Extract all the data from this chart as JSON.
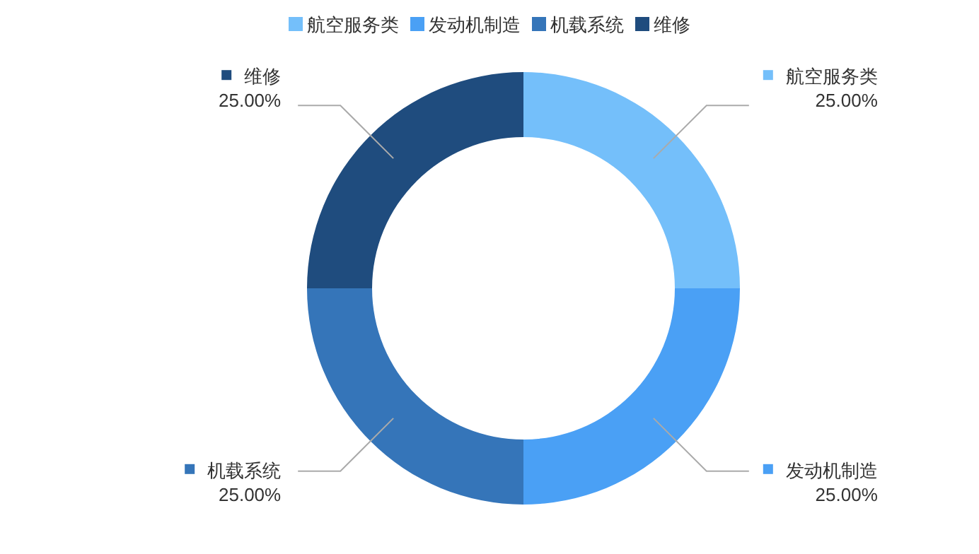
{
  "chart_data": {
    "type": "donut",
    "categories": [
      "航空服务类",
      "发动机制造",
      "机载系统",
      "维修"
    ],
    "values": [
      25,
      25,
      25,
      25
    ],
    "colors": [
      "#74bffa",
      "#4aa0f5",
      "#3575b9",
      "#1f4c7e"
    ],
    "value_labels": [
      "25.00%",
      "25.00%",
      "25.00%",
      "25.00%"
    ],
    "legend": "top"
  }
}
